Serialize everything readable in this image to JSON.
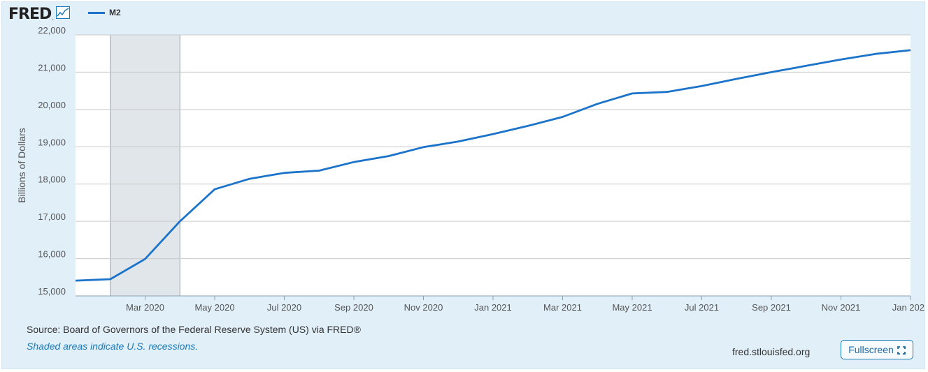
{
  "header": {
    "logo_text": "FRED",
    "logo_mark": ".",
    "legend_label": "M2"
  },
  "colors": {
    "frame_bg": "#e1eff9",
    "series": "#1b74c9",
    "recession": "#e1e6eb",
    "link": "#1a7ab8"
  },
  "footer": {
    "source": "Source: Board of Governors of the Federal Reserve System (US) via FRED®",
    "note": "Shaded areas indicate U.S. recessions.",
    "site": "fred.stlouisfed.org",
    "fullscreen_label": "Fullscreen"
  },
  "chart_data": {
    "type": "line",
    "ylabel": "Billions of Dollars",
    "ylim": [
      15000,
      22000
    ],
    "yticks": [
      15000,
      16000,
      17000,
      18000,
      19000,
      20000,
      21000,
      22000
    ],
    "ytick_labels": [
      "15,000",
      "16,000",
      "17,000",
      "18,000",
      "19,000",
      "20,000",
      "21,000",
      "22,000"
    ],
    "xlim": [
      "2020-01",
      "2022-01"
    ],
    "xtick_labels": [
      {
        "x": "2020-03",
        "label": "Mar 2020"
      },
      {
        "x": "2020-05",
        "label": "May 2020"
      },
      {
        "x": "2020-07",
        "label": "Jul 2020"
      },
      {
        "x": "2020-09",
        "label": "Sep 2020"
      },
      {
        "x": "2020-11",
        "label": "Nov 2020"
      },
      {
        "x": "2021-01",
        "label": "Jan 2021"
      },
      {
        "x": "2021-03",
        "label": "Mar 2021"
      },
      {
        "x": "2021-05",
        "label": "May 2021"
      },
      {
        "x": "2021-07",
        "label": "Jul 2021"
      },
      {
        "x": "2021-09",
        "label": "Sep 2021"
      },
      {
        "x": "2021-11",
        "label": "Nov 2021"
      },
      {
        "x": "2022-01",
        "label": "Jan 202"
      }
    ],
    "recession": {
      "start": "2020-02",
      "end": "2020-04"
    },
    "grid": true,
    "legend_placement": "top-left",
    "series": [
      {
        "name": "M2",
        "x": [
          "2020-01",
          "2020-02",
          "2020-03",
          "2020-04",
          "2020-05",
          "2020-06",
          "2020-07",
          "2020-08",
          "2020-09",
          "2020-10",
          "2020-11",
          "2020-12",
          "2021-01",
          "2021-02",
          "2021-03",
          "2021-04",
          "2021-05",
          "2021-06",
          "2021-07",
          "2021-08",
          "2021-09",
          "2021-10",
          "2021-11",
          "2021-12",
          "2022-01"
        ],
        "values": [
          15410,
          15450,
          15990,
          17000,
          17860,
          18140,
          18300,
          18360,
          18590,
          18750,
          18990,
          19140,
          19340,
          19560,
          19800,
          20150,
          20430,
          20470,
          20630,
          20820,
          21000,
          21170,
          21340,
          21490,
          21590
        ]
      }
    ]
  }
}
